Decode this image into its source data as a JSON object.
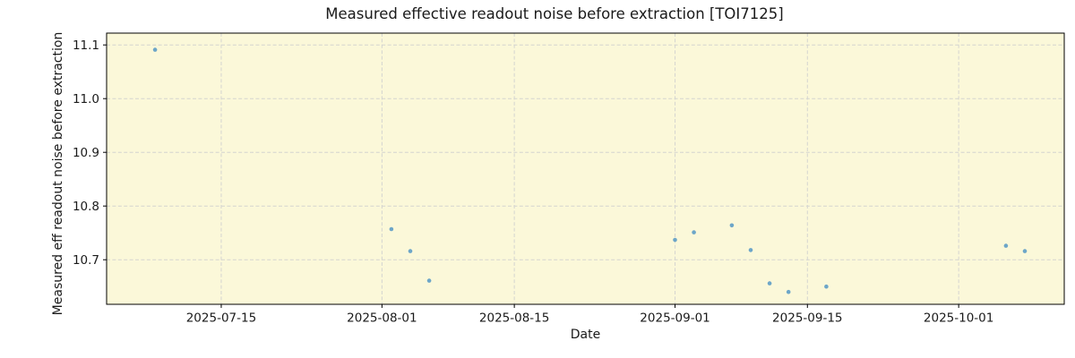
{
  "chart": {
    "title": "Measured effective readout noise before extraction [TOI7125]",
    "xlabel": "Date",
    "ylabel": "Measured eff readout noise before extraction"
  },
  "chart_data": {
    "type": "scatter",
    "title": "Measured effective readout noise before extraction [TOI7125]",
    "xlabel": "Date",
    "ylabel": "Measured eff readout noise before extraction",
    "x": [
      "2025-07-08",
      "2025-08-02",
      "2025-08-04",
      "2025-08-06",
      "2025-09-01",
      "2025-09-03",
      "2025-09-07",
      "2025-09-09",
      "2025-09-11",
      "2025-09-13",
      "2025-09-17",
      "2025-10-06",
      "2025-10-08"
    ],
    "y": [
      11.091,
      10.757,
      10.716,
      10.661,
      10.737,
      10.751,
      10.764,
      10.718,
      10.656,
      10.64,
      10.65,
      10.726,
      10.716
    ],
    "x_ticks": [
      "2025-07-15",
      "2025-08-01",
      "2025-08-15",
      "2025-09-01",
      "2025-09-15",
      "2025-10-01"
    ],
    "y_ticks": [
      11.1,
      11.0,
      10.9,
      10.8,
      10.7
    ],
    "xlim": [
      "2025-07-02T21:00:00Z",
      "2025-10-12T04:00:00Z"
    ],
    "ylim": [
      10.617,
      11.122
    ],
    "grid": "dashed",
    "legend": "none",
    "colors": {
      "marker": "#65a1c7",
      "plot_background": "#fbf8d9",
      "grid": "#d4d4d0",
      "spine": "#000000",
      "text": "#1a1a1a"
    }
  }
}
